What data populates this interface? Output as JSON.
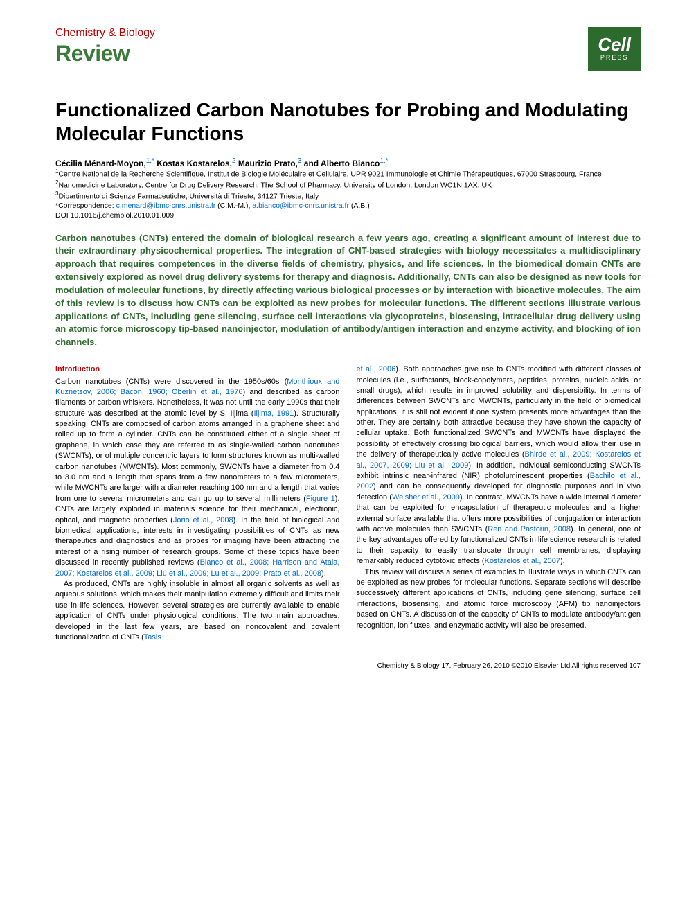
{
  "header": {
    "journal": "Chemistry & Biology",
    "article_type": "Review",
    "logo_main": "Cell",
    "logo_sub": "PRESS"
  },
  "title": "Functionalized Carbon Nanotubes for Probing and Modulating Molecular Functions",
  "authors_html": "Cécilia Ménard-Moyon,<sup>1,*</sup> Kostas Kostarelos,<sup>2</sup> Maurizio Prato,<sup>3</sup> and Alberto Bianco<sup>1,*</sup>",
  "affiliations": {
    "a1": "<sup>1</sup>Centre National de la Recherche Scientifique, Institut de Biologie Moléculaire et Cellulaire, UPR 9021 Immunologie et Chimie Thérapeutiques, 67000 Strasbourg, France",
    "a2": "<sup>2</sup>Nanomedicine Laboratory, Centre for Drug Delivery Research, The School of Pharmacy, University of London, London WC1N 1AX, UK",
    "a3": "<sup>3</sup>Dipartimento di Scienze Farmaceutiche, Università di Trieste, 34127 Trieste, Italy",
    "corr": "*Correspondence: <a href=\"#\">c.menard@ibmc-cnrs.unistra.fr</a> (C.M.-M.), <a href=\"#\">a.bianco@ibmc-cnrs.unistra.fr</a> (A.B.)",
    "doi": "DOI 10.1016/j.chembiol.2010.01.009"
  },
  "abstract": "Carbon nanotubes (CNTs) entered the domain of biological research a few years ago, creating a significant amount of interest due to their extraordinary physicochemical properties. The integration of CNT-based strategies with biology necessitates a multidisciplinary approach that requires competences in the diverse fields of chemistry, physics, and life sciences. In the biomedical domain CNTs are extensively explored as novel drug delivery systems for therapy and diagnosis. Additionally, CNTs can also be designed as new tools for modulation of molecular functions, by directly affecting various biological processes or by interaction with bioactive molecules. The aim of this review is to discuss how CNTs can be exploited as new probes for molecular functions. The different sections illustrate various applications of CNTs, including gene silencing, surface cell interactions via glycoproteins, biosensing, intracellular drug delivery using an atomic force microscopy tip-based nanoinjector, modulation of antibody/antigen interaction and enzyme activity, and blocking of ion channels.",
  "intro_heading": "Introduction",
  "col1": {
    "p1": "Carbon nanotubes (CNTs) were discovered in the 1950s/60s (<a class=\"ref-link\" href=\"#\">Monthioux and Kuznetsov, 2006; Bacon, 1960; Oberlin et al., 1976</a>) and described as carbon filaments or carbon whiskers. Nonetheless, it was not until the early 1990s that their structure was described at the atomic level by S. Iijima (<a class=\"ref-link\" href=\"#\">Iijima, 1991</a>). Structurally speaking, CNTs are composed of carbon atoms arranged in a graphene sheet and rolled up to form a cylinder. CNTs can be constituted either of a single sheet of graphene, in which case they are referred to as single-walled carbon nanotubes (SWCNTs), or of multiple concentric layers to form structures known as multi-walled carbon nanotubes (MWCNTs). Most commonly, SWCNTs have a diameter from 0.4 to 3.0 nm and a length that spans from a few nanometers to a few micrometers, while MWCNTs are larger with a diameter reaching 100 nm and a length that varies from one to several micrometers and can go up to several millimeters (<a class=\"ref-link\" href=\"#\">Figure 1</a>). CNTs are largely exploited in materials science for their mechanical, electronic, optical, and magnetic properties (<a class=\"ref-link\" href=\"#\">Jorio et al., 2008</a>). In the field of biological and biomedical applications, interests in investigating possibilities of CNTs as new therapeutics and diagnostics and as probes for imaging have been attracting the interest of a rising number of research groups. Some of these topics have been discussed in recently published reviews (<a class=\"ref-link\" href=\"#\">Bianco et al., 2008; Harrison and Atala, 2007; Kostarelos et al., 2009; Liu et al., 2009; Lu et al., 2009; Prato et al., 2008</a>).",
    "p2": "As produced, CNTs are highly insoluble in almost all organic solvents as well as aqueous solutions, which makes their manipulation extremely difficult and limits their use in life sciences. However, several strategies are currently available to enable application of CNTs under physiological conditions. The two main approaches, developed in the last few years, are based on noncovalent and covalent functionalization of CNTs (<a class=\"ref-link\" href=\"#\">Tasis</a>"
  },
  "col2": {
    "p1": "<a class=\"ref-link\" href=\"#\">et al., 2006</a>). Both approaches give rise to CNTs modified with different classes of molecules (i.e., surfactants, block-copolymers, peptides, proteins, nucleic acids, or small drugs), which results in improved solubility and dispersibility. In terms of differences between SWCNTs and MWCNTs, particularly in the field of biomedical applications, it is still not evident if one system presents more advantages than the other. They are certainly both attractive because they have shown the capacity of cellular uptake. Both functionalized SWCNTs and MWCNTs have displayed the possibility of effectively crossing biological barriers, which would allow their use in the delivery of therapeutically active molecules (<a class=\"ref-link\" href=\"#\">Bhirde et al., 2009; Kostarelos et al., 2007, 2009; Liu et al., 2009</a>). In addition, individual semiconducting SWCNTs exhibit intrinsic near-infrared (NIR) photoluminescent properties (<a class=\"ref-link\" href=\"#\">Bachilo et al., 2002</a>) and can be consequently developed for diagnostic purposes and in vivo detection (<a class=\"ref-link\" href=\"#\">Welsher et al., 2009</a>). In contrast, MWCNTs have a wide internal diameter that can be exploited for encapsulation of therapeutic molecules and a higher external surface available that offers more possibilities of conjugation or interaction with active molecules than SWCNTs (<a class=\"ref-link\" href=\"#\">Ren and Pastorin, 2008</a>). In general, one of the key advantages offered by functionalized CNTs in life science research is related to their capacity to easily translocate through cell membranes, displaying remarkably reduced cytotoxic effects (<a class=\"ref-link\" href=\"#\">Kostarelos et al., 2007</a>).",
    "p2": "This review will discuss a series of examples to illustrate ways in which CNTs can be exploited as new probes for molecular functions. Separate sections will describe successively different applications of CNTs, including gene silencing, surface cell interactions, biosensing, and atomic force microscopy (AFM) tip nanoinjectors based on CNTs. A discussion of the capacity of CNTs to modulate antibody/antigen recognition, ion fluxes, and enzymatic activity will also be presented."
  },
  "footer": "Chemistry & Biology 17, February 26, 2010 ©2010 Elsevier Ltd All rights reserved   107",
  "colors": {
    "red": "#c00000",
    "green_text": "#2d6a2d",
    "green_logo": "#2d6a2d",
    "link": "#0066cc",
    "body": "#000000",
    "bg": "#ffffff"
  },
  "typography": {
    "title_pt": 28,
    "abstract_pt": 13,
    "body_pt": 11,
    "affil_pt": 10.5,
    "footer_pt": 10,
    "family": "Arial, Helvetica, sans-serif"
  }
}
